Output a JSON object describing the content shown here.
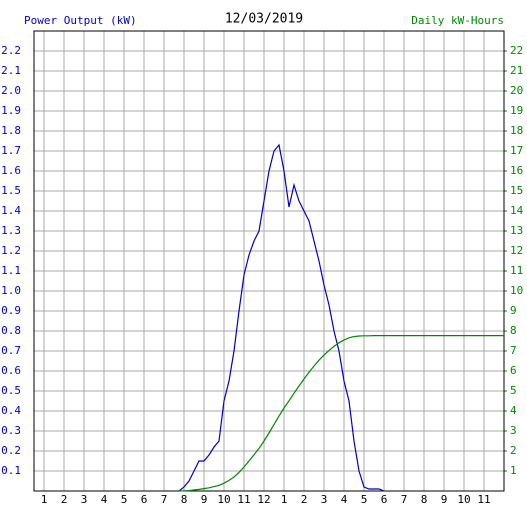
{
  "chart_data": {
    "type": "line",
    "title": "12/03/2019",
    "y_label": "Power Output (kW)",
    "y2_label": "Daily kW-Hours",
    "x": [
      7.75,
      8,
      8.25,
      8.5,
      8.75,
      9,
      9.25,
      9.5,
      9.75,
      10,
      10.25,
      10.5,
      10.75,
      11,
      11.25,
      11.5,
      11.75,
      12,
      12.25,
      12.5,
      12.75,
      13,
      13.25,
      13.5,
      13.75,
      14,
      14.25,
      14.5,
      14.75,
      15,
      15.25,
      15.5,
      15.75,
      16,
      16.25,
      16.5,
      16.75,
      17,
      17.25,
      17.5,
      17.75,
      18,
      19,
      20,
      21,
      22,
      23,
      24
    ],
    "series": [
      {
        "name": "Power Output (kW)",
        "color": "#0000cc",
        "axis": "y",
        "values": [
          0,
          0.02,
          0.05,
          0.1,
          0.15,
          0.15,
          0.18,
          0.22,
          0.25,
          0.45,
          0.55,
          0.7,
          0.9,
          1.08,
          1.18,
          1.25,
          1.3,
          1.45,
          1.6,
          1.7,
          1.73,
          1.6,
          1.42,
          1.53,
          1.45,
          1.4,
          1.35,
          1.25,
          1.15,
          1.03,
          0.93,
          0.8,
          0.7,
          0.55,
          0.45,
          0.25,
          0.1,
          0.02,
          0.01,
          0.01,
          0.01,
          0,
          null,
          null,
          null,
          null,
          null,
          null
        ]
      },
      {
        "name": "Daily kW-Hours",
        "color": "#008800",
        "axis": "y2",
        "values": [
          0,
          0.01,
          0.02,
          0.05,
          0.08,
          0.12,
          0.16,
          0.22,
          0.28,
          0.39,
          0.53,
          0.7,
          0.93,
          1.2,
          1.5,
          1.81,
          2.13,
          2.5,
          2.9,
          3.32,
          3.75,
          4.15,
          4.51,
          4.89,
          5.25,
          5.6,
          5.94,
          6.25,
          6.54,
          6.8,
          7.03,
          7.23,
          7.41,
          7.55,
          7.66,
          7.72,
          7.75,
          7.76,
          7.76,
          7.77,
          7.77,
          7.77,
          7.77,
          7.77,
          7.77,
          7.77,
          7.77,
          7.77
        ]
      }
    ],
    "xlim": [
      0.5,
      24
    ],
    "xticks": [
      1,
      2,
      3,
      4,
      5,
      6,
      7,
      8,
      9,
      10,
      11,
      12,
      {
        "value": 13,
        "label": "1"
      },
      {
        "value": 14,
        "label": "2"
      },
      {
        "value": 15,
        "label": "3"
      },
      {
        "value": 16,
        "label": "4"
      },
      {
        "value": 17,
        "label": "5"
      },
      {
        "value": 18,
        "label": "6"
      },
      {
        "value": 19,
        "label": "7"
      },
      {
        "value": 20,
        "label": "8"
      },
      {
        "value": 21,
        "label": "9"
      },
      {
        "value": 22,
        "label": "10"
      },
      {
        "value": 23,
        "label": "11"
      }
    ],
    "ylim": [
      0,
      2.3
    ],
    "yticks": [
      0.1,
      0.2,
      0.3,
      0.4,
      0.5,
      0.6,
      0.7,
      0.8,
      0.9,
      {
        "value": 1,
        "label": "1.0"
      },
      1.1,
      1.2,
      1.3,
      1.4,
      1.5,
      1.6,
      1.7,
      1.8,
      1.9,
      {
        "value": 2,
        "label": "2.0"
      },
      2.1,
      2.2
    ],
    "y2lim": [
      0,
      23
    ],
    "y2ticks": [
      1,
      2,
      3,
      4,
      5,
      6,
      7,
      8,
      9,
      10,
      11,
      12,
      13,
      14,
      15,
      16,
      17,
      18,
      19,
      20,
      21,
      22
    ],
    "grid": true
  }
}
